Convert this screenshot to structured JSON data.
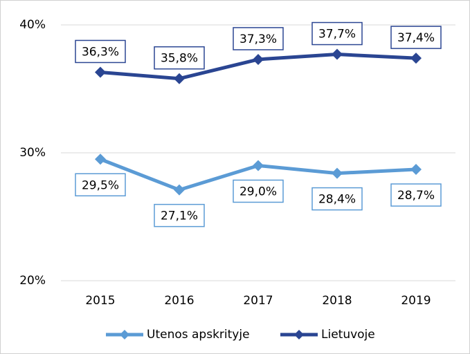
{
  "chart_data": {
    "type": "line",
    "categories": [
      "2015",
      "2016",
      "2017",
      "2018",
      "2019"
    ],
    "series": [
      {
        "name": "Utenos apskrityje",
        "color": "#5b9bd5",
        "values": [
          29.5,
          27.1,
          29.0,
          28.4,
          28.7
        ],
        "value_labels": [
          "29,5%",
          "27,1%",
          "29,0%",
          "28,4%",
          "28,7%"
        ]
      },
      {
        "name": "Lietuvoje",
        "color": "#2a4592",
        "values": [
          36.3,
          35.8,
          37.3,
          37.7,
          37.4
        ],
        "value_labels": [
          "36,3%",
          "35,8%",
          "37,3%",
          "37,7%",
          "37,4%"
        ]
      }
    ],
    "ylim": [
      20,
      40
    ],
    "yticks": [
      {
        "value": 20,
        "label": "20%"
      },
      {
        "value": 30,
        "label": "30%"
      },
      {
        "value": 40,
        "label": "40%"
      }
    ],
    "grid": true,
    "legend": "bottom"
  }
}
